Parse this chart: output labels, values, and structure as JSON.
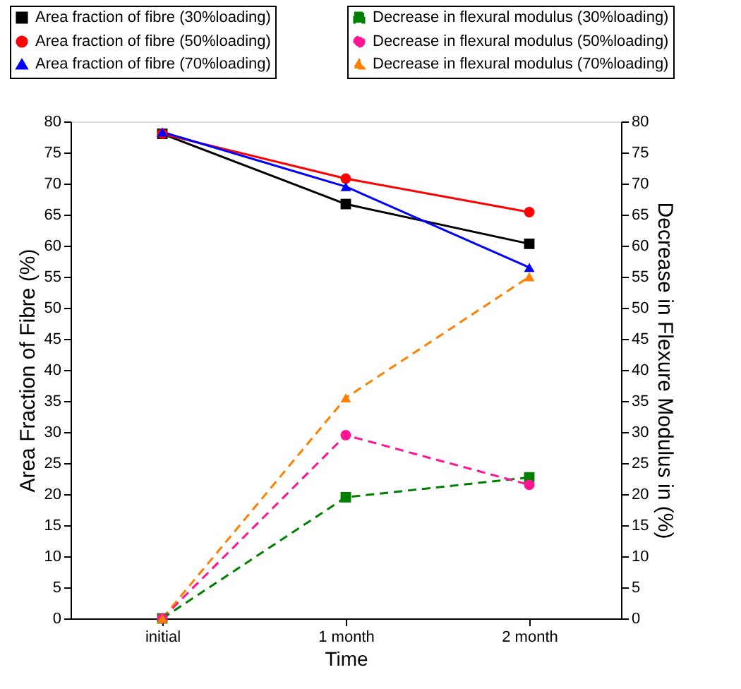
{
  "chart_data": {
    "type": "line",
    "xlabel": "Time",
    "ylabel": "Area Fraction of Fibre (%)",
    "y2label": "Decrease in Flexure Modulus in (%)",
    "categories": [
      "initial",
      "1 month",
      "2 month"
    ],
    "ylim": [
      0,
      80
    ],
    "yticks": [
      0,
      5,
      10,
      15,
      20,
      25,
      30,
      35,
      40,
      45,
      50,
      55,
      60,
      65,
      70,
      75,
      80
    ],
    "y2lim": [
      0,
      80
    ],
    "y2ticks": [
      0,
      5,
      10,
      15,
      20,
      25,
      30,
      35,
      40,
      45,
      50,
      55,
      60,
      65,
      70,
      75,
      80
    ],
    "grid": false,
    "legend": "top",
    "series": [
      {
        "name": "Area fraction of fibre (30%loading)",
        "color": "#000000",
        "values": [
          78,
          66.7,
          60.3
        ],
        "marker": "square",
        "line_style": "solid"
      },
      {
        "name": "Area fraction of fibre (50%loading)",
        "color": "#ff0000",
        "values": [
          78,
          70.8,
          65.4
        ],
        "marker": "circle",
        "line_style": "solid"
      },
      {
        "name": "Area fraction of fibre (70%loading)",
        "color": "#0000ff",
        "values": [
          78.3,
          69.5,
          56.5
        ],
        "marker": "triangle",
        "line_style": "solid"
      },
      {
        "name": "Decrease in flexural modulus (30%loading)",
        "color": "#008000",
        "values": [
          0,
          19.5,
          22.7
        ],
        "marker": "square",
        "line_style": "dashed",
        "axis": "y2"
      },
      {
        "name": "Decrease in flexural modulus (50%loading)",
        "color": "#ff1493",
        "values": [
          0,
          29.5,
          21.5
        ],
        "marker": "circle",
        "line_style": "dashed",
        "axis": "y2"
      },
      {
        "name": "Decrease in flexural modulus (70%loading)",
        "color": "#ff8000",
        "values": [
          0,
          35.5,
          55
        ],
        "marker": "triangle",
        "line_style": "dashed",
        "axis": "y2"
      }
    ]
  }
}
